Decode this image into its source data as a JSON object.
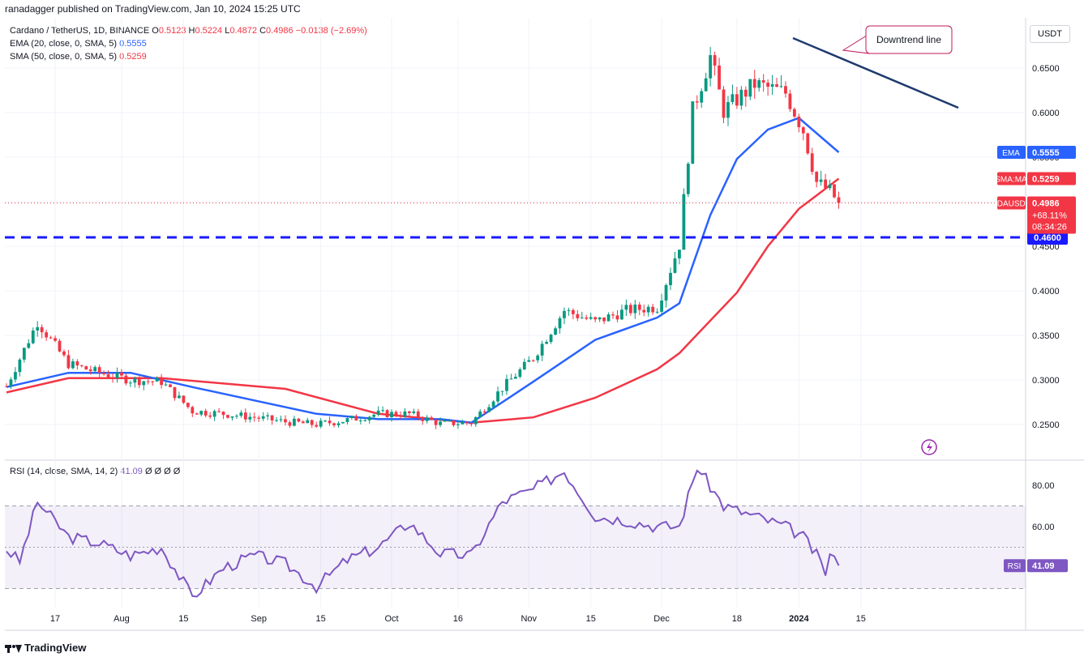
{
  "header": {
    "published": "ranadagger published on TradingView.com, Jan 10, 2024 15:25 UTC"
  },
  "legend": {
    "symbol": "Cardano / TetherUS, 1D, BINANCE",
    "o_label": "O",
    "o": "0.5123",
    "h_label": "H",
    "h": "0.5224",
    "l_label": "L",
    "l": "0.4872",
    "c_label": "C",
    "c": "0.4986",
    "change": "−0.0138 (−2.69%)",
    "ema_label": "EMA (20, close, 0, SMA, 5)",
    "ema_value": "0.5555",
    "sma_label": "SMA (50, close, 0, SMA, 5)",
    "sma_value": "0.5259"
  },
  "rsi_legend": {
    "label": "RSI (14, close, SMA, 14, 2)",
    "value": "41.09",
    "extras": "Ø Ø Ø Ø"
  },
  "unit": "USDT",
  "footer": {
    "brand": "TradingView"
  },
  "colors": {
    "up": "#089981",
    "down": "#f23645",
    "ema": "#2962ff",
    "sma": "#f23645",
    "rsi": "#7e57c2",
    "support": "#1a1aff",
    "trend": "#1e3a6e"
  },
  "chart_data": [
    {
      "type": "candlestick",
      "title": "Cardano / TetherUS, 1D, BINANCE",
      "x_ticks": [
        "17",
        "Aug",
        "15",
        "Sep",
        "15",
        "Oct",
        "16",
        "Nov",
        "15",
        "Dec",
        "18",
        "2024",
        "15"
      ],
      "y_ticks": [
        "0.6500",
        "0.6000",
        "0.5500",
        "0.5000",
        "0.4500",
        "0.4000",
        "0.3500",
        "0.3000",
        "0.2500"
      ],
      "ylim": [
        0.215,
        0.695
      ],
      "grid": true,
      "series": [
        {
          "name": "ADAUSDT",
          "points": [
            {
              "date": "2023-07-06",
              "close": 0.293
            },
            {
              "date": "2023-07-13",
              "close": 0.365
            },
            {
              "date": "2023-07-20",
              "close": 0.318
            },
            {
              "date": "2023-07-27",
              "close": 0.308
            },
            {
              "date": "2023-08-03",
              "close": 0.3
            },
            {
              "date": "2023-08-10",
              "close": 0.298
            },
            {
              "date": "2023-08-17",
              "close": 0.265
            },
            {
              "date": "2023-08-24",
              "close": 0.262
            },
            {
              "date": "2023-08-31",
              "close": 0.258
            },
            {
              "date": "2023-09-07",
              "close": 0.253
            },
            {
              "date": "2023-09-14",
              "close": 0.25
            },
            {
              "date": "2023-09-21",
              "close": 0.255
            },
            {
              "date": "2023-09-28",
              "close": 0.262
            },
            {
              "date": "2023-10-05",
              "close": 0.262
            },
            {
              "date": "2023-10-12",
              "close": 0.251
            },
            {
              "date": "2023-10-19",
              "close": 0.252
            },
            {
              "date": "2023-10-26",
              "close": 0.291
            },
            {
              "date": "2023-11-02",
              "close": 0.325
            },
            {
              "date": "2023-11-09",
              "close": 0.378
            },
            {
              "date": "2023-11-16",
              "close": 0.365
            },
            {
              "date": "2023-11-23",
              "close": 0.378
            },
            {
              "date": "2023-11-30",
              "close": 0.382
            },
            {
              "date": "2023-12-05",
              "close": 0.452
            },
            {
              "date": "2023-12-08",
              "close": 0.602
            },
            {
              "date": "2023-12-12",
              "close": 0.663
            },
            {
              "date": "2023-12-15",
              "close": 0.602
            },
            {
              "date": "2023-12-22",
              "close": 0.632
            },
            {
              "date": "2023-12-29",
              "close": 0.622
            },
            {
              "date": "2024-01-02",
              "close": 0.58
            },
            {
              "date": "2024-01-05",
              "close": 0.522
            },
            {
              "date": "2024-01-08",
              "close": 0.512
            },
            {
              "date": "2024-01-10",
              "close": 0.4986
            }
          ]
        },
        {
          "name": "EMA",
          "points": [
            {
              "date": "2023-07-06",
              "value": 0.292
            },
            {
              "date": "2023-07-20",
              "value": 0.308
            },
            {
              "date": "2023-08-03",
              "value": 0.308
            },
            {
              "date": "2023-08-17",
              "value": 0.292
            },
            {
              "date": "2023-08-31",
              "value": 0.277
            },
            {
              "date": "2023-09-14",
              "value": 0.262
            },
            {
              "date": "2023-09-28",
              "value": 0.256
            },
            {
              "date": "2023-10-12",
              "value": 0.256
            },
            {
              "date": "2023-10-19",
              "value": 0.252
            },
            {
              "date": "2023-11-02",
              "value": 0.298
            },
            {
              "date": "2023-11-16",
              "value": 0.345
            },
            {
              "date": "2023-11-30",
              "value": 0.37
            },
            {
              "date": "2023-12-05",
              "value": 0.386
            },
            {
              "date": "2023-12-12",
              "value": 0.485
            },
            {
              "date": "2023-12-18",
              "value": 0.548
            },
            {
              "date": "2023-12-25",
              "value": 0.581
            },
            {
              "date": "2024-01-01",
              "value": 0.594
            },
            {
              "date": "2024-01-10",
              "value": 0.5555
            }
          ]
        },
        {
          "name": "SMA:MA",
          "points": [
            {
              "date": "2023-07-06",
              "value": 0.286
            },
            {
              "date": "2023-07-20",
              "value": 0.302
            },
            {
              "date": "2023-08-10",
              "value": 0.302
            },
            {
              "date": "2023-09-07",
              "value": 0.29
            },
            {
              "date": "2023-09-28",
              "value": 0.262
            },
            {
              "date": "2023-10-19",
              "value": 0.252
            },
            {
              "date": "2023-11-02",
              "value": 0.258
            },
            {
              "date": "2023-11-16",
              "value": 0.28
            },
            {
              "date": "2023-11-30",
              "value": 0.312
            },
            {
              "date": "2023-12-05",
              "value": 0.33
            },
            {
              "date": "2023-12-18",
              "value": 0.398
            },
            {
              "date": "2023-12-25",
              "value": 0.45
            },
            {
              "date": "2024-01-01",
              "value": 0.492
            },
            {
              "date": "2024-01-10",
              "value": 0.5259
            }
          ]
        }
      ],
      "annotations": {
        "downtrend_label": "Downtrend line",
        "support_value": 0.46,
        "support_label": "0.4600"
      },
      "price_tags": [
        {
          "name": "EMA",
          "value": "0.5555",
          "y": 0.5555
        },
        {
          "name": "SMA:MA",
          "value": "0.5259",
          "y": 0.5259
        },
        {
          "name": "ADAUSDT",
          "value": "0.4986",
          "pct": "+68.11%",
          "countdown": "08:34:26",
          "y": 0.4986
        }
      ]
    },
    {
      "type": "line",
      "title": "RSI (14, close, SMA, 14, 2)",
      "y_ticks": [
        "80.00",
        "60.00"
      ],
      "ylim": [
        15,
        100
      ],
      "bands": [
        30,
        50,
        70
      ],
      "grid": true,
      "series": [
        {
          "name": "RSI",
          "points": [
            {
              "date": "2023-07-06",
              "value": 49
            },
            {
              "date": "2023-07-09",
              "value": 43
            },
            {
              "date": "2023-07-13",
              "value": 72
            },
            {
              "date": "2023-07-20",
              "value": 55
            },
            {
              "date": "2023-07-27",
              "value": 52
            },
            {
              "date": "2023-08-03",
              "value": 46
            },
            {
              "date": "2023-08-10",
              "value": 50
            },
            {
              "date": "2023-08-17",
              "value": 26
            },
            {
              "date": "2023-08-24",
              "value": 40
            },
            {
              "date": "2023-08-31",
              "value": 46
            },
            {
              "date": "2023-09-07",
              "value": 42
            },
            {
              "date": "2023-09-14",
              "value": 31
            },
            {
              "date": "2023-09-21",
              "value": 44
            },
            {
              "date": "2023-09-28",
              "value": 50
            },
            {
              "date": "2023-10-05",
              "value": 62
            },
            {
              "date": "2023-10-12",
              "value": 47
            },
            {
              "date": "2023-10-19",
              "value": 46
            },
            {
              "date": "2023-10-26",
              "value": 72
            },
            {
              "date": "2023-11-02",
              "value": 78
            },
            {
              "date": "2023-11-09",
              "value": 87
            },
            {
              "date": "2023-11-16",
              "value": 65
            },
            {
              "date": "2023-11-23",
              "value": 63
            },
            {
              "date": "2023-11-30",
              "value": 60
            },
            {
              "date": "2023-12-05",
              "value": 60
            },
            {
              "date": "2023-12-09",
              "value": 89
            },
            {
              "date": "2023-12-15",
              "value": 70
            },
            {
              "date": "2023-12-22",
              "value": 65
            },
            {
              "date": "2023-12-29",
              "value": 60
            },
            {
              "date": "2024-01-02",
              "value": 55
            },
            {
              "date": "2024-01-05",
              "value": 46
            },
            {
              "date": "2024-01-07",
              "value": 38
            },
            {
              "date": "2024-01-08",
              "value": 46
            },
            {
              "date": "2024-01-10",
              "value": 41.09
            }
          ]
        }
      ]
    }
  ]
}
